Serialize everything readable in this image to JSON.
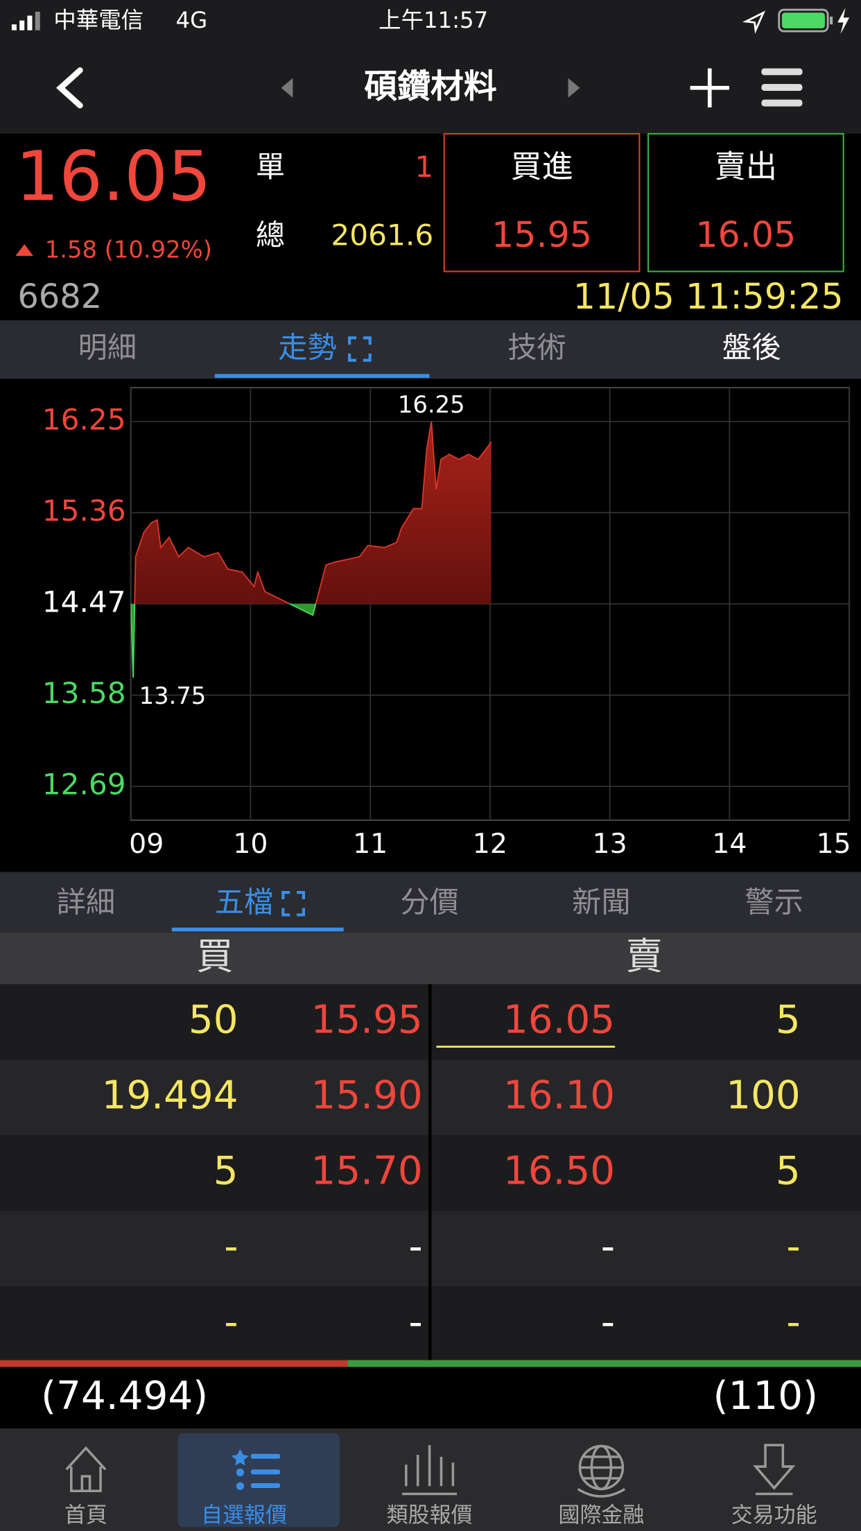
{
  "status_bar": {
    "carrier": "中華電信",
    "network": "4G",
    "time": "上午11:57"
  },
  "header": {
    "title": "碩鑽材料"
  },
  "quote": {
    "price": "16.05",
    "change": "1.58 (10.92%)",
    "code": "6682",
    "single_label": "單",
    "single_value": "1",
    "total_label": "總",
    "total_value": "2061.6",
    "bid_label": "買進",
    "bid": "15.95",
    "ask_label": "賣出",
    "ask": "16.05",
    "datetime": "11/05 11:59:25"
  },
  "tabs": [
    "明細",
    "走勢",
    "技術",
    "盤後"
  ],
  "chart_data": {
    "type": "line",
    "x": [
      9.0,
      9.02,
      9.04,
      9.11,
      9.17,
      9.22,
      9.25,
      9.32,
      9.4,
      9.48,
      9.61,
      9.73,
      9.81,
      9.93,
      10.03,
      10.06,
      10.12,
      10.52,
      10.63,
      10.71,
      10.91,
      10.98,
      11.12,
      11.22,
      11.26,
      11.36,
      11.43,
      11.47,
      11.51,
      11.55,
      11.59,
      11.66,
      11.74,
      11.82,
      11.9,
      11.96,
      12.01
    ],
    "series": [
      {
        "color": "#d9382c",
        "values": [
          14.47,
          13.75,
          14.93,
          15.17,
          15.26,
          15.29,
          15.02,
          15.12,
          14.93,
          15.02,
          14.93,
          14.97,
          14.81,
          14.78,
          14.64,
          14.78,
          14.59,
          14.36,
          14.85,
          14.88,
          14.93,
          15.04,
          15.02,
          15.07,
          15.21,
          15.4,
          15.4,
          15.97,
          16.25,
          15.59,
          15.88,
          15.93,
          15.88,
          15.93,
          15.88,
          15.97,
          16.05
        ]
      }
    ],
    "reference": 14.47,
    "max_label": "16.25",
    "min_label": "13.75",
    "xlim": [
      9,
      15
    ],
    "ylim": [
      12.36,
      16.58
    ],
    "xticks": [
      {
        "value": 9,
        "label": "09"
      },
      10,
      11,
      12,
      13,
      14,
      15
    ],
    "yticks": [
      12.69,
      13.58,
      14.47,
      15.36,
      16.25
    ],
    "grid": true
  },
  "sub_tabs": [
    "詳細",
    "五檔",
    "分價",
    "新聞",
    "警示"
  ],
  "order_book": {
    "buy_header": "買",
    "sell_header": "賣",
    "rows": [
      [
        "50",
        "15.95",
        "16.05",
        "5"
      ],
      [
        "19.494",
        "15.90",
        "16.10",
        "100"
      ],
      [
        "5",
        "15.70",
        "16.50",
        "5"
      ],
      [
        "-",
        "-",
        "-",
        "-"
      ],
      [
        "-",
        "-",
        "-",
        "-"
      ]
    ],
    "buy_total": "(74.494)",
    "sell_total": "(110)"
  },
  "bottom_nav": [
    "首頁",
    "自選報價",
    "類股報價",
    "國際金融",
    "交易功能"
  ]
}
